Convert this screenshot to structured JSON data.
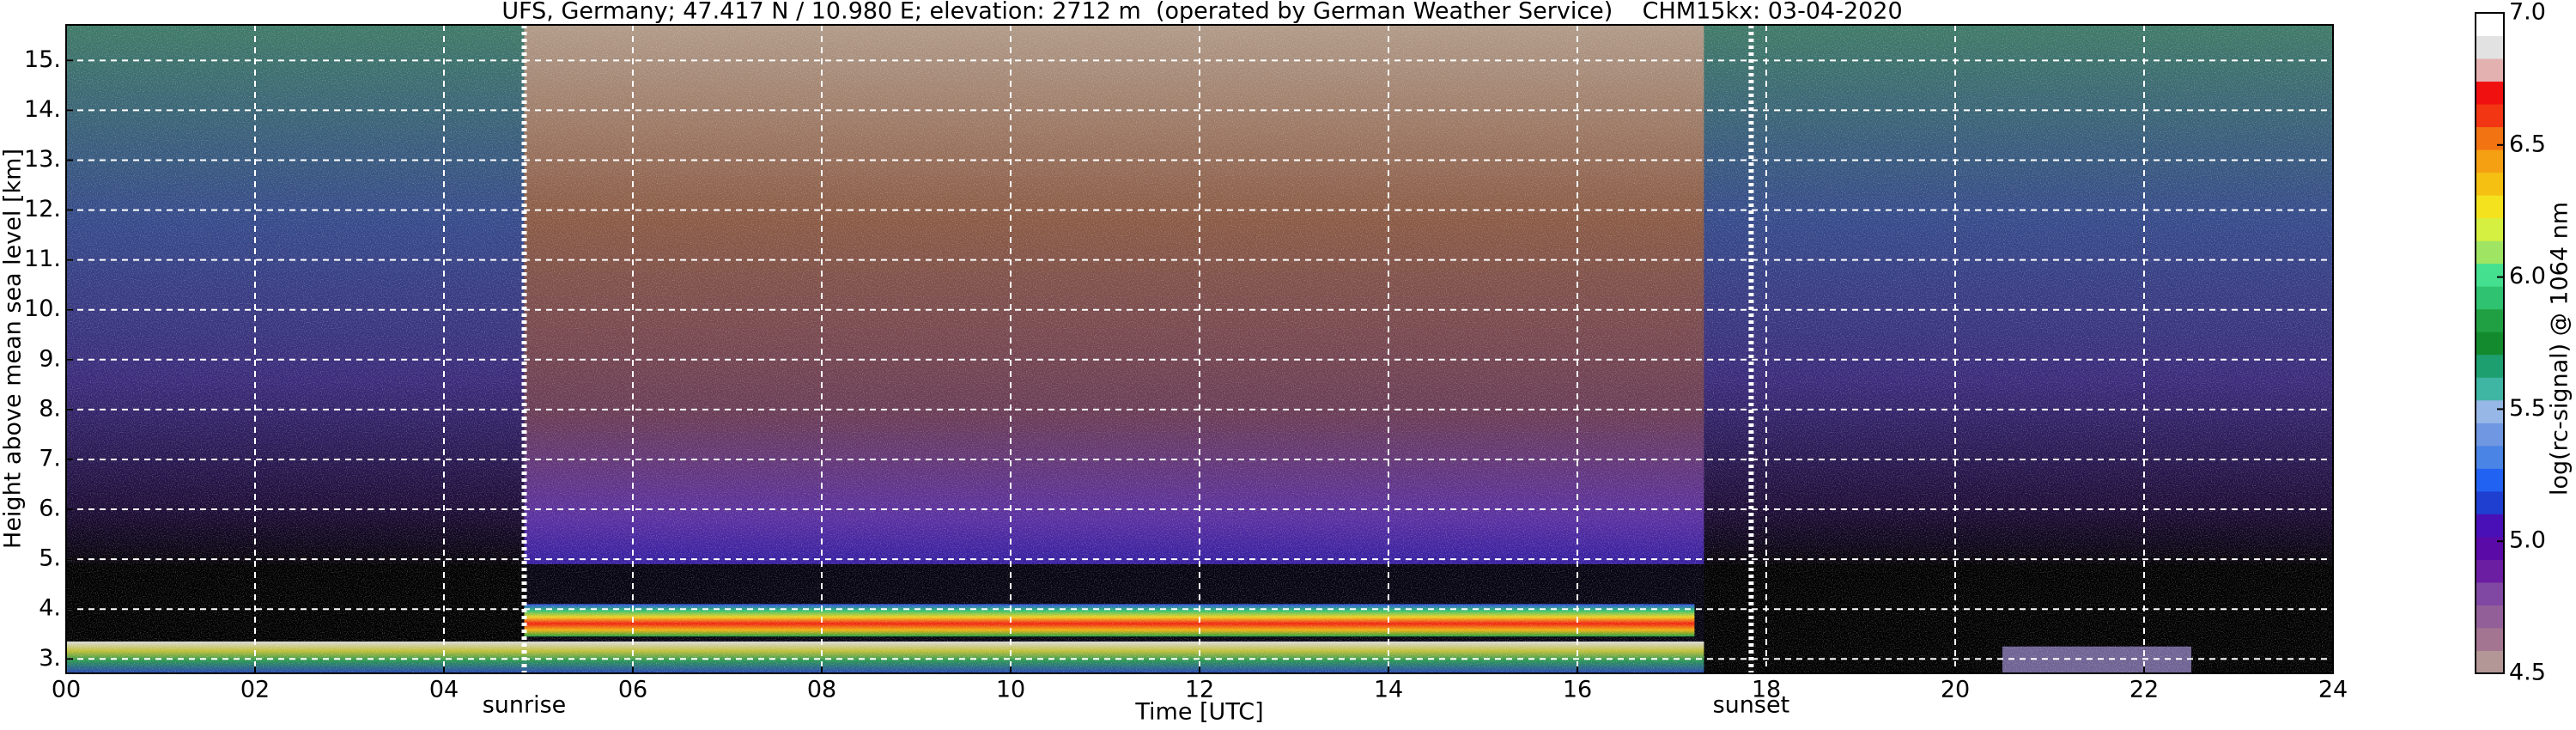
{
  "chart_data": {
    "type": "heatmap",
    "title": "UFS, Germany; 47.417 N / 10.980 E; elevation: 2712 m  (operated by German Weather Service)    CHM15kx: 03-04-2020",
    "x_label": "Time [UTC]",
    "y_label": "Height above mean sea level [km]",
    "xlim": [
      0,
      24
    ],
    "xticks": [
      {
        "value": 0,
        "label": "00"
      },
      {
        "value": 2,
        "label": "02"
      },
      {
        "value": 4,
        "label": "04"
      },
      {
        "value": 6,
        "label": "06"
      },
      {
        "value": 8,
        "label": "08"
      },
      {
        "value": 10,
        "label": "10"
      },
      {
        "value": 12,
        "label": "12"
      },
      {
        "value": 14,
        "label": "14"
      },
      {
        "value": 16,
        "label": "16"
      },
      {
        "value": 18,
        "label": "18"
      },
      {
        "value": 20,
        "label": "20"
      },
      {
        "value": 22,
        "label": "22"
      },
      {
        "value": 24,
        "label": "24"
      }
    ],
    "ylim": [
      2.712,
      15.712
    ],
    "yticks": [
      {
        "value": 3,
        "label": "3."
      },
      {
        "value": 4,
        "label": "4."
      },
      {
        "value": 5,
        "label": "5."
      },
      {
        "value": 6,
        "label": "6."
      },
      {
        "value": 7,
        "label": "7."
      },
      {
        "value": 8,
        "label": "8."
      },
      {
        "value": 9,
        "label": "9."
      },
      {
        "value": 10,
        "label": "10."
      },
      {
        "value": 11,
        "label": "11."
      },
      {
        "value": 12,
        "label": "12."
      },
      {
        "value": 13,
        "label": "13."
      },
      {
        "value": 14,
        "label": "14."
      },
      {
        "value": 15,
        "label": "15."
      }
    ],
    "grid": true,
    "annotations": [
      {
        "label": "sunrise",
        "x": 4.85
      },
      {
        "label": "sunset",
        "x": 17.84
      }
    ],
    "colorbar": {
      "label": "log(rc-signal) @ 1064 nm",
      "lim": [
        4.5,
        7.0
      ],
      "ticks": [
        {
          "value": 4.5,
          "label": "4.5"
        },
        {
          "value": 5.0,
          "label": "5.0"
        },
        {
          "value": 5.5,
          "label": "5.5"
        },
        {
          "value": 6.0,
          "label": "6.0"
        },
        {
          "value": 6.5,
          "label": "6.5"
        },
        {
          "value": 7.0,
          "label": "7.0"
        }
      ],
      "colors": [
        "#b39696",
        "#a47591",
        "#925f98",
        "#8048a3",
        "#6c1ea2",
        "#5a0aa6",
        "#4a10b8",
        "#1f3fd0",
        "#2262f2",
        "#4a84e4",
        "#6f97e2",
        "#97b7e6",
        "#3fb5a3",
        "#1e9f6f",
        "#138a2e",
        "#20a043",
        "#2fc270",
        "#44e08f",
        "#9fe462",
        "#d5f040",
        "#f4e21e",
        "#f5c012",
        "#f5a012",
        "#f27312",
        "#f23512",
        "#f01010",
        "#e4b1b1",
        "#e2e2e2",
        "#ffffff"
      ]
    }
  }
}
